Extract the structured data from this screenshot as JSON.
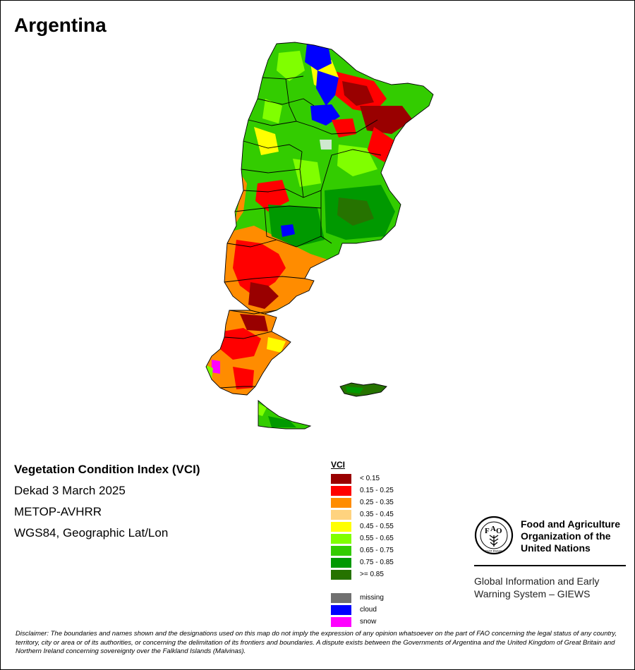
{
  "map": {
    "title": "Argentina",
    "colors": {
      "vci_lt_015": "#990000",
      "vci_015_025": "#ff0000",
      "vci_025_035": "#ff8c00",
      "vci_035_045": "#ffd37f",
      "vci_045_055": "#ffff00",
      "vci_055_065": "#80ff00",
      "vci_065_075": "#33cc00",
      "vci_075_085": "#009900",
      "vci_ge_085": "#267300",
      "missing": "#707070",
      "cloud": "#0000ff",
      "snow": "#ff00ff",
      "boundary": "#000000"
    }
  },
  "info": {
    "index_name": "Vegetation Condition Index (VCI)",
    "period": "Dekad 3 March 2025",
    "sensor": "METOP-AVHRR",
    "projection": "WGS84, Geographic Lat/Lon"
  },
  "legend": {
    "title": "VCI",
    "classes": [
      {
        "label": "< 0.15",
        "color": "#990000"
      },
      {
        "label": "0.15 - 0.25",
        "color": "#ff0000"
      },
      {
        "label": "0.25 - 0.35",
        "color": "#ff8c00"
      },
      {
        "label": "0.35 - 0.45",
        "color": "#ffd37f"
      },
      {
        "label": "0.45 - 0.55",
        "color": "#ffff00"
      },
      {
        "label": "0.55 - 0.65",
        "color": "#80ff00"
      },
      {
        "label": "0.65 - 0.75",
        "color": "#33cc00"
      },
      {
        "label": "0.75 - 0.85",
        "color": "#009900"
      },
      {
        "label": ">= 0.85",
        "color": "#267300"
      }
    ],
    "special": [
      {
        "label": "missing",
        "color": "#707070"
      },
      {
        "label": "cloud",
        "color": "#0000ff"
      },
      {
        "label": "snow",
        "color": "#ff00ff"
      }
    ]
  },
  "org": {
    "logo_letters": [
      "F",
      "A",
      "O"
    ],
    "logo_motto": "FIAT PANIS",
    "name": "Food and Agriculture Organization of the United Nations",
    "program": "Global Information and Early Warning System – GIEWS"
  },
  "disclaimer": "Disclaimer: The boundaries and names shown and the designations used on this map do not imply the expression of any opinion whatsoever on the part of FAO concerning the legal status of any country, territory, city or area or of its authorities, or concerning the delimitation of its frontiers and boundaries. A dispute exists between the Governments of Argentina and the United Kingdom of Great Britain and Northern Ireland concerning sovereignty over the Falkland Islands (Malvinas)."
}
